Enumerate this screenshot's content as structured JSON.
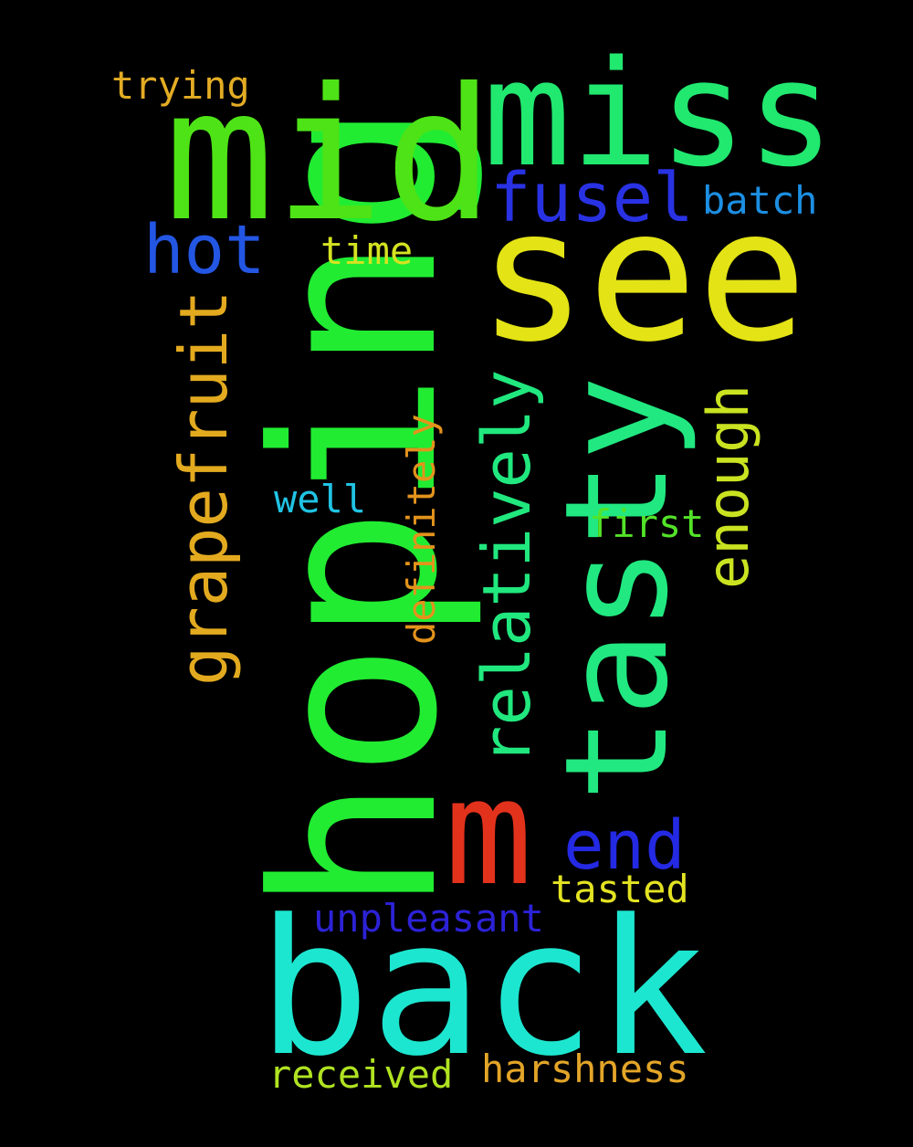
{
  "colors": {
    "background": "#000000"
  },
  "words": {
    "hoping": {
      "text": "hoping",
      "color": "#21ec32"
    },
    "back": {
      "text": "back",
      "color": "#1de6d0"
    },
    "mid": {
      "text": "mid",
      "color": "#4ee316"
    },
    "see": {
      "text": "see",
      "color": "#e3e316"
    },
    "tasty": {
      "text": "tasty",
      "color": "#21e880"
    },
    "miss": {
      "text": "miss",
      "color": "#21e86f"
    },
    "m": {
      "text": "m",
      "color": "#e3321c"
    },
    "relatively": {
      "text": "relatively",
      "color": "#21e87e"
    },
    "grapefruit": {
      "text": "grapefruit",
      "color": "#e3aa1f"
    },
    "fusel": {
      "text": "fusel",
      "color": "#2932e3"
    },
    "hot": {
      "text": "hot",
      "color": "#2356e3"
    },
    "end": {
      "text": "end",
      "color": "#2429e3"
    },
    "enough": {
      "text": "enough",
      "color": "#c9e321"
    },
    "definitely": {
      "text": "definitely",
      "color": "#e3931c"
    },
    "unpleasant": {
      "text": "unpleasant",
      "color": "#2c22d6"
    },
    "harshness": {
      "text": "harshness",
      "color": "#e3a528"
    },
    "received": {
      "text": "received",
      "color": "#b0e321"
    },
    "tasted": {
      "text": "tasted",
      "color": "#e3e322"
    },
    "batch": {
      "text": "batch",
      "color": "#1c8fe3"
    },
    "trying": {
      "text": "trying",
      "color": "#e3ac24"
    },
    "time": {
      "text": "time",
      "color": "#d4e321"
    },
    "well": {
      "text": "well",
      "color": "#20c3e3"
    },
    "first": {
      "text": "first",
      "color": "#53e328"
    }
  }
}
